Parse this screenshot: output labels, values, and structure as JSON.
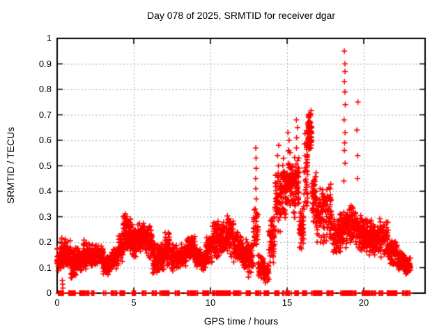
{
  "chart_data": {
    "type": "scatter",
    "title": "Day 078 of 2025, SRMTID for receiver dgar",
    "xlabel": "GPS time / hours",
    "ylabel": "SRMTID / TECUs",
    "xlim": [
      0,
      24
    ],
    "ylim": [
      0,
      1
    ],
    "xticks": [
      [
        0,
        "0"
      ],
      [
        5,
        "5"
      ],
      [
        10,
        "10"
      ],
      [
        15,
        "15"
      ],
      [
        20,
        "20"
      ]
    ],
    "yticks": [
      [
        0,
        "0"
      ],
      [
        0.1,
        "0.1"
      ],
      [
        0.2,
        "0.2"
      ],
      [
        0.3,
        "0.3"
      ],
      [
        0.4,
        "0.4"
      ],
      [
        0.5,
        "0.5"
      ],
      [
        0.6,
        "0.6"
      ],
      [
        0.7,
        "0.7"
      ],
      [
        0.8,
        "0.8"
      ],
      [
        0.9,
        "0.9"
      ],
      [
        1,
        "1"
      ]
    ],
    "grid": true,
    "legend": "none",
    "series": [
      {
        "name": "SRMTID",
        "marker": "plus",
        "color": "#ff0000"
      }
    ],
    "colors": {
      "points": "#ff0000",
      "grid": "#aaaaaa",
      "axis": "#000000",
      "background": "#ffffff",
      "text": "#000000"
    },
    "bin_format": [
      "hour_start",
      "hour_end",
      "value_min",
      "value_max",
      "point_count"
    ],
    "envelope_bins": [
      [
        0.0,
        0.3,
        0.08,
        0.18,
        55
      ],
      [
        0.3,
        0.6,
        0.1,
        0.22,
        60
      ],
      [
        0.6,
        0.9,
        0.1,
        0.21,
        60
      ],
      [
        0.9,
        1.2,
        0.05,
        0.18,
        60
      ],
      [
        1.2,
        1.6,
        0.07,
        0.19,
        65
      ],
      [
        1.6,
        2.0,
        0.09,
        0.21,
        60
      ],
      [
        2.0,
        2.5,
        0.1,
        0.2,
        75
      ],
      [
        2.5,
        3.0,
        0.11,
        0.2,
        75
      ],
      [
        3.0,
        3.5,
        0.07,
        0.15,
        70
      ],
      [
        3.5,
        4.0,
        0.09,
        0.18,
        70
      ],
      [
        4.0,
        4.3,
        0.12,
        0.24,
        50
      ],
      [
        4.3,
        4.6,
        0.15,
        0.33,
        55
      ],
      [
        4.6,
        4.9,
        0.16,
        0.3,
        60
      ],
      [
        4.9,
        5.2,
        0.13,
        0.26,
        55
      ],
      [
        5.2,
        5.7,
        0.15,
        0.29,
        75
      ],
      [
        5.7,
        6.2,
        0.13,
        0.27,
        75
      ],
      [
        6.2,
        6.6,
        0.06,
        0.2,
        60
      ],
      [
        6.6,
        7.0,
        0.08,
        0.2,
        60
      ],
      [
        7.0,
        7.35,
        0.1,
        0.25,
        55
      ],
      [
        7.35,
        7.9,
        0.08,
        0.2,
        70
      ],
      [
        7.9,
        8.4,
        0.1,
        0.2,
        70
      ],
      [
        8.4,
        9.0,
        0.12,
        0.23,
        85
      ],
      [
        9.0,
        9.4,
        0.1,
        0.18,
        55
      ],
      [
        9.4,
        9.7,
        0.08,
        0.16,
        40
      ],
      [
        9.7,
        10.1,
        0.11,
        0.24,
        60
      ],
      [
        10.1,
        10.6,
        0.12,
        0.3,
        75
      ],
      [
        10.6,
        11.1,
        0.14,
        0.29,
        75
      ],
      [
        11.1,
        11.5,
        0.14,
        0.31,
        60
      ],
      [
        11.5,
        12.0,
        0.11,
        0.25,
        70
      ],
      [
        12.0,
        12.4,
        0.09,
        0.22,
        60
      ],
      [
        12.4,
        12.8,
        0.05,
        0.22,
        60
      ],
      [
        12.8,
        13.1,
        0.15,
        0.34,
        40
      ],
      [
        13.1,
        13.45,
        0.05,
        0.16,
        45
      ],
      [
        13.45,
        13.8,
        0.03,
        0.13,
        45
      ],
      [
        13.8,
        14.2,
        0.1,
        0.32,
        55
      ],
      [
        14.2,
        14.6,
        0.22,
        0.48,
        60
      ],
      [
        14.6,
        15.0,
        0.28,
        0.54,
        60
      ],
      [
        15.0,
        15.4,
        0.3,
        0.58,
        60
      ],
      [
        15.4,
        15.8,
        0.25,
        0.55,
        60
      ],
      [
        15.8,
        16.1,
        0.16,
        0.36,
        45
      ],
      [
        16.1,
        16.35,
        0.3,
        0.66,
        40
      ],
      [
        16.35,
        16.6,
        0.56,
        0.72,
        70
      ],
      [
        16.6,
        16.9,
        0.25,
        0.5,
        45
      ],
      [
        16.9,
        17.4,
        0.18,
        0.42,
        65
      ],
      [
        17.4,
        17.9,
        0.2,
        0.45,
        70
      ],
      [
        17.9,
        18.5,
        0.14,
        0.32,
        75
      ],
      [
        18.5,
        19.0,
        0.17,
        0.34,
        70
      ],
      [
        19.0,
        19.5,
        0.19,
        0.35,
        70
      ],
      [
        19.5,
        20.0,
        0.15,
        0.32,
        70
      ],
      [
        20.0,
        20.5,
        0.14,
        0.3,
        70
      ],
      [
        20.5,
        21.0,
        0.13,
        0.28,
        70
      ],
      [
        21.0,
        21.6,
        0.13,
        0.3,
        80
      ],
      [
        21.6,
        22.2,
        0.1,
        0.22,
        80
      ],
      [
        22.2,
        22.7,
        0.08,
        0.17,
        80
      ],
      [
        22.7,
        23.05,
        0.07,
        0.14,
        70
      ]
    ],
    "spike_columns": [
      {
        "t": 0.32,
        "values": [
          0.02,
          0.035,
          0.05
        ]
      },
      {
        "t": 12.98,
        "values": [
          0.33,
          0.37,
          0.41,
          0.45,
          0.49,
          0.53,
          0.57
        ]
      },
      {
        "t": 14.42,
        "values": [
          0.46,
          0.5,
          0.54,
          0.58
        ]
      },
      {
        "t": 15.08,
        "values": [
          0.56,
          0.6,
          0.63
        ]
      },
      {
        "t": 15.65,
        "values": [
          0.52,
          0.57,
          0.61,
          0.65,
          0.68
        ]
      },
      {
        "t": 16.75,
        "values": [
          0.28,
          0.33,
          0.38,
          0.44
        ]
      },
      {
        "t": 18.75,
        "values": [
          0.44,
          0.51,
          0.56,
          0.59,
          0.63,
          0.68,
          0.74,
          0.79,
          0.83,
          0.87,
          0.9,
          0.95
        ]
      },
      {
        "t": 19.6,
        "values": [
          0.45,
          0.54,
          0.64,
          0.75
        ]
      }
    ],
    "zero_marker_segments": [
      [
        0.05,
        0.42
      ],
      [
        0.7,
        1.2
      ],
      [
        1.35,
        2.1
      ],
      [
        2.25,
        2.45
      ],
      [
        3.0,
        3.2
      ],
      [
        3.5,
        3.9
      ],
      [
        4.1,
        4.45
      ],
      [
        4.9,
        5.2
      ],
      [
        5.55,
        5.85
      ],
      [
        6.2,
        6.5
      ],
      [
        6.7,
        7.4
      ],
      [
        7.7,
        8.0
      ],
      [
        8.5,
        9.2
      ],
      [
        9.5,
        9.9
      ],
      [
        10.1,
        11.3
      ],
      [
        11.5,
        12.0
      ],
      [
        12.3,
        12.65
      ],
      [
        12.95,
        13.3
      ],
      [
        13.5,
        13.8
      ],
      [
        14.2,
        14.5
      ],
      [
        14.7,
        15.3
      ],
      [
        15.5,
        15.75
      ],
      [
        16.0,
        16.3
      ],
      [
        16.6,
        17.4
      ],
      [
        17.6,
        18.0
      ],
      [
        18.5,
        19.5
      ],
      [
        19.9,
        20.8
      ],
      [
        21.0,
        21.25
      ],
      [
        21.5,
        22.2
      ],
      [
        22.5,
        23.05
      ]
    ]
  }
}
